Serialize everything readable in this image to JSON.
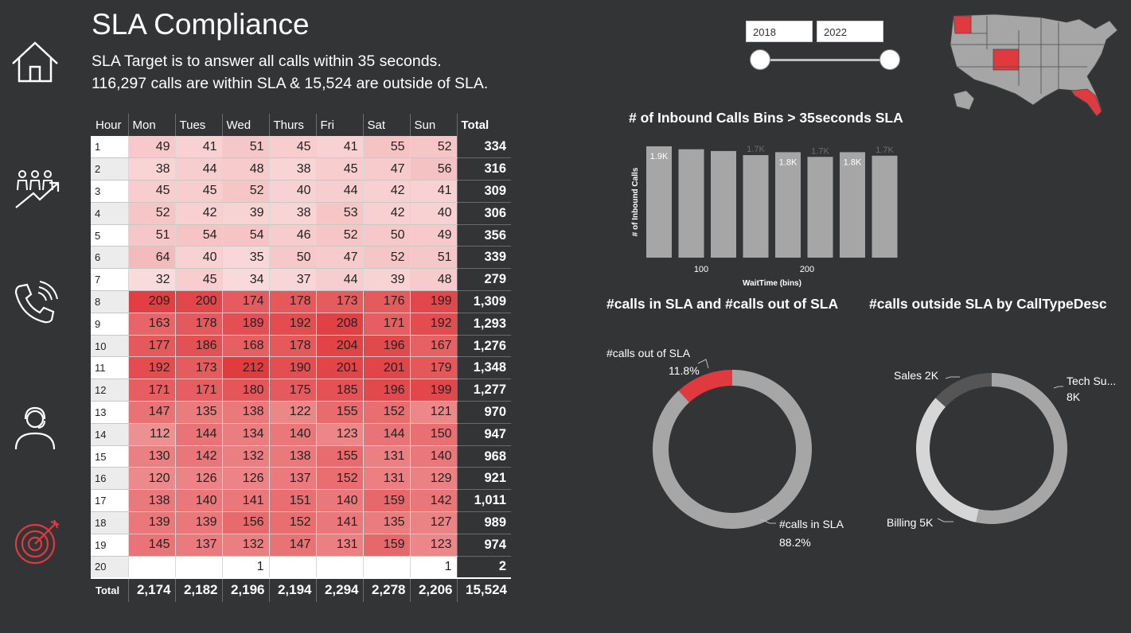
{
  "title": "SLA Compliance",
  "subtitle_line1": "SLA Target is to answer all calls within 35 seconds.",
  "subtitle_line2": "116,297 calls are within SLA & 15,524  are outside of SLA.",
  "nav": [
    {
      "icon": "home-icon"
    },
    {
      "icon": "people-growth-icon"
    },
    {
      "icon": "phone-call-icon"
    },
    {
      "icon": "agent-headset-icon"
    },
    {
      "icon": "target-icon"
    }
  ],
  "date_slicer": {
    "start": "2018",
    "end": "2022"
  },
  "colors": {
    "accent": "#e03a3e",
    "bar": "#a6a6a6",
    "background": "#333436",
    "donut_gray": "#a6a6a6",
    "donut_light": "#d6d6d6",
    "donut_dark": "#555555"
  },
  "matrix": {
    "columns": [
      "Hour",
      "Mon",
      "Tues",
      "Wed",
      "Thurs",
      "Fri",
      "Sat",
      "Sun",
      "Total"
    ],
    "rows": [
      {
        "hour": "1",
        "values": [
          "49",
          "41",
          "51",
          "45",
          "41",
          "55",
          "52"
        ],
        "total": "334"
      },
      {
        "hour": "2",
        "values": [
          "38",
          "44",
          "48",
          "38",
          "45",
          "47",
          "56"
        ],
        "total": "316"
      },
      {
        "hour": "3",
        "values": [
          "45",
          "45",
          "52",
          "40",
          "44",
          "42",
          "41"
        ],
        "total": "309"
      },
      {
        "hour": "4",
        "values": [
          "52",
          "42",
          "39",
          "38",
          "53",
          "42",
          "40"
        ],
        "total": "306"
      },
      {
        "hour": "5",
        "values": [
          "51",
          "54",
          "54",
          "46",
          "52",
          "50",
          "49"
        ],
        "total": "356"
      },
      {
        "hour": "6",
        "values": [
          "64",
          "40",
          "35",
          "50",
          "47",
          "52",
          "51"
        ],
        "total": "339"
      },
      {
        "hour": "7",
        "values": [
          "32",
          "45",
          "34",
          "37",
          "44",
          "39",
          "48"
        ],
        "total": "279"
      },
      {
        "hour": "8",
        "values": [
          "209",
          "200",
          "174",
          "178",
          "173",
          "176",
          "199"
        ],
        "total": "1,309"
      },
      {
        "hour": "9",
        "values": [
          "163",
          "178",
          "189",
          "192",
          "208",
          "171",
          "192"
        ],
        "total": "1,293"
      },
      {
        "hour": "10",
        "values": [
          "177",
          "186",
          "168",
          "178",
          "204",
          "196",
          "167"
        ],
        "total": "1,276"
      },
      {
        "hour": "11",
        "values": [
          "192",
          "173",
          "212",
          "190",
          "201",
          "201",
          "179"
        ],
        "total": "1,348"
      },
      {
        "hour": "12",
        "values": [
          "171",
          "171",
          "180",
          "175",
          "185",
          "196",
          "199"
        ],
        "total": "1,277"
      },
      {
        "hour": "13",
        "values": [
          "147",
          "135",
          "138",
          "122",
          "155",
          "152",
          "121"
        ],
        "total": "970"
      },
      {
        "hour": "14",
        "values": [
          "112",
          "144",
          "134",
          "140",
          "123",
          "144",
          "150"
        ],
        "total": "947"
      },
      {
        "hour": "15",
        "values": [
          "130",
          "142",
          "132",
          "138",
          "155",
          "131",
          "140"
        ],
        "total": "968"
      },
      {
        "hour": "16",
        "values": [
          "120",
          "126",
          "126",
          "137",
          "152",
          "131",
          "129"
        ],
        "total": "921"
      },
      {
        "hour": "17",
        "values": [
          "138",
          "140",
          "141",
          "151",
          "140",
          "159",
          "142"
        ],
        "total": "1,011"
      },
      {
        "hour": "18",
        "values": [
          "139",
          "139",
          "156",
          "152",
          "141",
          "135",
          "127"
        ],
        "total": "989"
      },
      {
        "hour": "19",
        "values": [
          "145",
          "137",
          "132",
          "147",
          "131",
          "159",
          "123"
        ],
        "total": "974"
      },
      {
        "hour": "20",
        "values": [
          "",
          "",
          "1",
          "",
          "",
          "",
          "1"
        ],
        "total": "2"
      }
    ],
    "footer": {
      "label": "Total",
      "values": [
        "2,174",
        "2,182",
        "2,196",
        "2,194",
        "2,294",
        "2,278",
        "2,206"
      ],
      "total": "15,524"
    }
  },
  "chart_data": [
    {
      "type": "bar",
      "title": "# of Inbound Calls Bins > 35seconds SLA",
      "xlabel": "WaitTime (bins)",
      "ylabel": "# of Inbound Calls",
      "x_ticks": [
        "100",
        "200"
      ],
      "values": [
        1900,
        1850,
        1820,
        1750,
        1800,
        1720,
        1800,
        1740
      ],
      "data_labels": [
        "1.9K",
        "",
        "",
        "1.7K",
        "1.8K",
        "1.7K",
        "1.8K",
        "1.7K"
      ]
    },
    {
      "type": "pie",
      "title": "#calls in SLA and #calls out of SLA",
      "slices": [
        {
          "label": "#calls out of SLA",
          "percent_label": "11.8%",
          "value": 11.8,
          "color": "#e03a3e"
        },
        {
          "label": "#calls in SLA",
          "percent_label": "88.2%",
          "value": 88.2,
          "color": "#a6a6a6"
        }
      ]
    },
    {
      "type": "pie",
      "title": "#calls outside SLA by CallTypeDesc",
      "slices": [
        {
          "label": "Tech Su...",
          "value_label": "8K",
          "value": 8,
          "color": "#a6a6a6"
        },
        {
          "label": "Billing 5K",
          "value_label": "",
          "value": 5,
          "color": "#d6d6d6"
        },
        {
          "label": "Sales 2K",
          "value_label": "",
          "value": 2,
          "color": "#555555"
        }
      ]
    }
  ],
  "map": {
    "highlighted_states": [
      "Washington",
      "Colorado",
      "Florida"
    ],
    "highlight_color": "#e03a3e",
    "base_color": "#a6a6a6"
  }
}
